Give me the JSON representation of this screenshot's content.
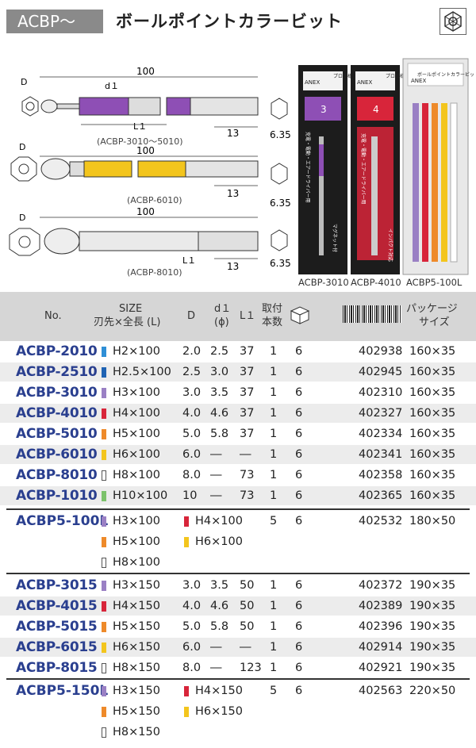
{
  "header": {
    "tag": "ACBP～",
    "title": "ボールポイントカラービット",
    "icon": "hex-ball-icon"
  },
  "diagrams": {
    "d_label": "D",
    "d1_label": "d１",
    "l1_label": "L１",
    "length": "100",
    "shank": "13",
    "hex": "6.35",
    "caption1": "(ACBP-3010〜5010)",
    "caption2": "(ACBP-6010)",
    "caption3": "(ACBP-8010)"
  },
  "packages": [
    {
      "label": "ACBP-3010",
      "size": "3",
      "color": "#8e4fb5"
    },
    {
      "label": "ACBP-4010",
      "size": "4",
      "color": "#d8253a"
    },
    {
      "label": "ACBP5-100L",
      "size": "",
      "color": "#e9e9e9"
    }
  ],
  "package_text": {
    "brand": "ANEX",
    "name": "ボールポイントカラービット",
    "usage": "充電・電動・エアードライバー用",
    "pro": "プロ仕様",
    "magnet": "マグネット付",
    "impact": "インパクト対応"
  },
  "table": {
    "headers": {
      "no": "No.",
      "size1": "SIZE",
      "size2": "刃先×全長 (L)",
      "d": "D",
      "d1_1": "d１",
      "d1_2": "(ϕ)",
      "l1": "L１",
      "qty1": "取付",
      "qty2": "本数",
      "pkg1": "パッケージ",
      "pkg2": "サイズ"
    },
    "rows": [
      {
        "no": "ACBP-2010",
        "color": "#2f8fd6",
        "hollow": false,
        "size": "H2×100",
        "d": "2.0",
        "d1": "2.5",
        "l1": "37",
        "qty": "1",
        "pcs": "6",
        "jan": "402938",
        "pkg": "160×35"
      },
      {
        "no": "ACBP-2510",
        "color": "#1f63b3",
        "hollow": false,
        "size": "H2.5×100",
        "d": "2.5",
        "d1": "3.0",
        "l1": "37",
        "qty": "1",
        "pcs": "6",
        "jan": "402945",
        "pkg": "160×35"
      },
      {
        "no": "ACBP-3010",
        "color": "#9a80c4",
        "hollow": false,
        "size": "H3×100",
        "d": "3.0",
        "d1": "3.5",
        "l1": "37",
        "qty": "1",
        "pcs": "6",
        "jan": "402310",
        "pkg": "160×35"
      },
      {
        "no": "ACBP-4010",
        "color": "#d8253a",
        "hollow": false,
        "size": "H4×100",
        "d": "4.0",
        "d1": "4.6",
        "l1": "37",
        "qty": "1",
        "pcs": "6",
        "jan": "402327",
        "pkg": "160×35"
      },
      {
        "no": "ACBP-5010",
        "color": "#ee8a2a",
        "hollow": false,
        "size": "H5×100",
        "d": "5.0",
        "d1": "5.8",
        "l1": "37",
        "qty": "1",
        "pcs": "6",
        "jan": "402334",
        "pkg": "160×35"
      },
      {
        "no": "ACBP-6010",
        "color": "#f3c51d",
        "hollow": false,
        "size": "H6×100",
        "d": "6.0",
        "d1": "―",
        "l1": "―",
        "qty": "1",
        "pcs": "6",
        "jan": "402341",
        "pkg": "160×35"
      },
      {
        "no": "ACBP-8010",
        "color": "#ffffff",
        "hollow": true,
        "size": "H8×100",
        "d": "8.0",
        "d1": "―",
        "l1": "73",
        "qty": "1",
        "pcs": "6",
        "jan": "402358",
        "pkg": "160×35"
      },
      {
        "no": "ACBP-1010",
        "color": "#7cc26b",
        "hollow": false,
        "size": "H10×100",
        "d": "10",
        "d1": "―",
        "l1": "73",
        "qty": "1",
        "pcs": "6",
        "jan": "402365",
        "pkg": "160×35"
      }
    ],
    "set1": {
      "no": "ACBP5-100L",
      "qty": "5",
      "pcs": "6",
      "jan": "402532",
      "pkg": "180×50",
      "items": [
        {
          "size": "H3×100",
          "color": "#9a80c4",
          "hollow": false
        },
        {
          "size": "H4×100",
          "color": "#d8253a",
          "hollow": false
        },
        {
          "size": "H5×100",
          "color": "#ee8a2a",
          "hollow": false
        },
        {
          "size": "H6×100",
          "color": "#f3c51d",
          "hollow": false
        },
        {
          "size": "H8×100",
          "color": "#ffffff",
          "hollow": true
        }
      ]
    },
    "rows150": [
      {
        "no": "ACBP-3015",
        "color": "#9a80c4",
        "hollow": false,
        "size": "H3×150",
        "d": "3.0",
        "d1": "3.5",
        "l1": "50",
        "qty": "1",
        "pcs": "6",
        "jan": "402372",
        "pkg": "190×35"
      },
      {
        "no": "ACBP-4015",
        "color": "#d8253a",
        "hollow": false,
        "size": "H4×150",
        "d": "4.0",
        "d1": "4.6",
        "l1": "50",
        "qty": "1",
        "pcs": "6",
        "jan": "402389",
        "pkg": "190×35"
      },
      {
        "no": "ACBP-5015",
        "color": "#ee8a2a",
        "hollow": false,
        "size": "H5×150",
        "d": "5.0",
        "d1": "5.8",
        "l1": "50",
        "qty": "1",
        "pcs": "6",
        "jan": "402396",
        "pkg": "190×35"
      },
      {
        "no": "ACBP-6015",
        "color": "#f3c51d",
        "hollow": false,
        "size": "H6×150",
        "d": "6.0",
        "d1": "―",
        "l1": "―",
        "qty": "1",
        "pcs": "6",
        "jan": "402914",
        "pkg": "190×35"
      },
      {
        "no": "ACBP-8015",
        "color": "#ffffff",
        "hollow": true,
        "size": "H8×150",
        "d": "8.0",
        "d1": "―",
        "l1": "123",
        "qty": "1",
        "pcs": "6",
        "jan": "402921",
        "pkg": "190×35"
      }
    ],
    "set2": {
      "no": "ACBP5-150L",
      "qty": "5",
      "pcs": "6",
      "jan": "402563",
      "pkg": "220×50",
      "items": [
        {
          "size": "H3×150",
          "color": "#9a80c4",
          "hollow": false
        },
        {
          "size": "H4×150",
          "color": "#d8253a",
          "hollow": false
        },
        {
          "size": "H5×150",
          "color": "#ee8a2a",
          "hollow": false
        },
        {
          "size": "H6×150",
          "color": "#f3c51d",
          "hollow": false
        },
        {
          "size": "H8×150",
          "color": "#ffffff",
          "hollow": true
        }
      ]
    }
  }
}
